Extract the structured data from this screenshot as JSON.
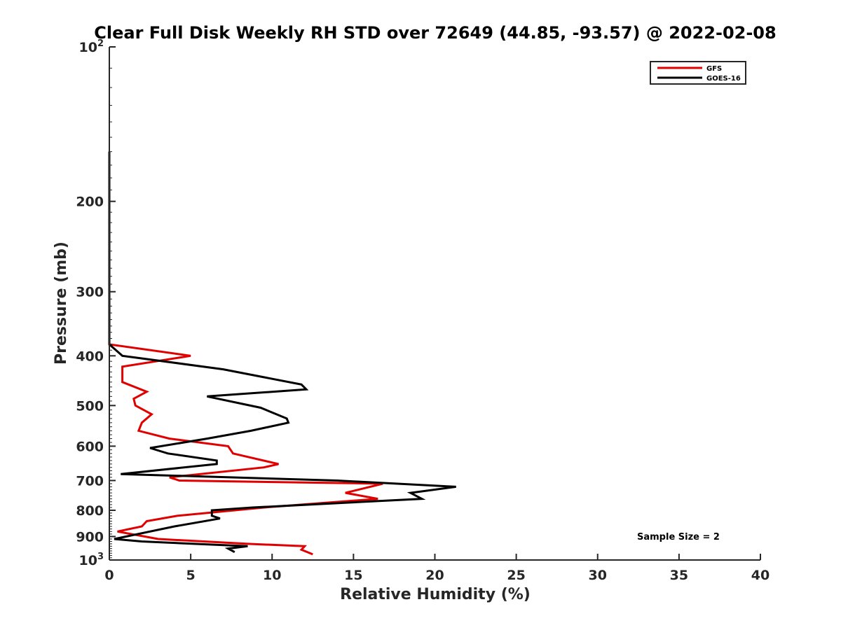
{
  "chart_data": {
    "type": "line",
    "title": "Clear Full Disk Weekly RH STD over 72649 (44.85, -93.57) @ 2022-02-08",
    "xlabel": "Relative Humidity (%)",
    "ylabel": "Pressure (mb)",
    "xlim": [
      0,
      40
    ],
    "ylim": [
      100,
      1000
    ],
    "y_scale": "log",
    "y_reversed": true,
    "x_ticks": [
      "0",
      "5",
      "10",
      "15",
      "20",
      "25",
      "30",
      "35",
      "40"
    ],
    "y_ticks": [
      {
        "value": 100,
        "base": "10",
        "exp": "2"
      },
      {
        "value": 200,
        "label": "200"
      },
      {
        "value": 300,
        "label": "300"
      },
      {
        "value": 400,
        "label": "400"
      },
      {
        "value": 500,
        "label": "500"
      },
      {
        "value": 600,
        "label": "600"
      },
      {
        "value": 700,
        "label": "700"
      },
      {
        "value": 800,
        "label": "800"
      },
      {
        "value": 900,
        "label": "900"
      },
      {
        "value": 1000,
        "base": "10",
        "exp": "3"
      }
    ],
    "legend_position": "top-right",
    "annotation": "Sample Size = 2",
    "series": [
      {
        "name": "GFS",
        "color": "#e00000",
        "points": [
          [
            0,
            160
          ],
          [
            0,
            200
          ],
          [
            0,
            300
          ],
          [
            0,
            380
          ],
          [
            5,
            400
          ],
          [
            0.8,
            420
          ],
          [
            0.8,
            450
          ],
          [
            2.3,
            470
          ],
          [
            1.5,
            485
          ],
          [
            1.6,
            500
          ],
          [
            2.6,
            520
          ],
          [
            2.0,
            540
          ],
          [
            1.8,
            560
          ],
          [
            3.7,
            580
          ],
          [
            7.3,
            600
          ],
          [
            7.6,
            620
          ],
          [
            10.4,
            650
          ],
          [
            9.5,
            660
          ],
          [
            3.7,
            690
          ],
          [
            4.3,
            700
          ],
          [
            16.8,
            710
          ],
          [
            14.5,
            740
          ],
          [
            16.5,
            760
          ],
          [
            9.5,
            790
          ],
          [
            4.2,
            820
          ],
          [
            2.3,
            840
          ],
          [
            2.0,
            860
          ],
          [
            0.5,
            880
          ],
          [
            3.0,
            910
          ],
          [
            8.5,
            930
          ],
          [
            12,
            940
          ],
          [
            11.8,
            955
          ],
          [
            12.5,
            975
          ]
        ]
      },
      {
        "name": "GOES-16",
        "color": "#000000",
        "points": [
          [
            0,
            160
          ],
          [
            0,
            200
          ],
          [
            0,
            300
          ],
          [
            0,
            380
          ],
          [
            0.8,
            400
          ],
          [
            7.0,
            425
          ],
          [
            11.8,
            455
          ],
          [
            12.1,
            465
          ],
          [
            6.0,
            480
          ],
          [
            9.3,
            505
          ],
          [
            10.9,
            530
          ],
          [
            11.0,
            540
          ],
          [
            8.7,
            560
          ],
          [
            6.0,
            580
          ],
          [
            2.5,
            605
          ],
          [
            3.6,
            620
          ],
          [
            6.6,
            640
          ],
          [
            6.6,
            650
          ],
          [
            0.7,
            680
          ],
          [
            14.0,
            700
          ],
          [
            21.3,
            720
          ],
          [
            18.5,
            740
          ],
          [
            19.2,
            760
          ],
          [
            8.8,
            790
          ],
          [
            6.3,
            800
          ],
          [
            6.3,
            820
          ],
          [
            6.8,
            830
          ],
          [
            4.0,
            860
          ],
          [
            0.3,
            910
          ],
          [
            2.0,
            920
          ],
          [
            8.5,
            940
          ],
          [
            7.3,
            950
          ],
          [
            7.7,
            965
          ]
        ]
      }
    ]
  }
}
